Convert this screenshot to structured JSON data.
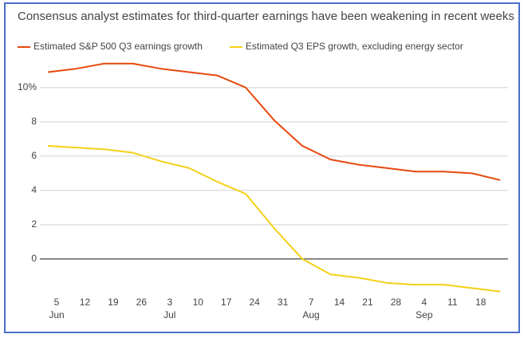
{
  "chart_data": {
    "type": "line",
    "title": "Consensus analyst estimates for third-quarter earnings have been weakening in recent weeks",
    "categories": [
      "5",
      "12",
      "19",
      "26",
      "3",
      "10",
      "17",
      "24",
      "31",
      "7",
      "14",
      "21",
      "28",
      "4",
      "11",
      "18",
      null
    ],
    "month_labels": [
      "Jun",
      null,
      null,
      null,
      "Jul",
      null,
      null,
      null,
      null,
      "Aug",
      null,
      null,
      null,
      "Sep",
      null,
      null,
      null
    ],
    "series": [
      {
        "name": "Estimated S&P 500 Q3 earnings growth",
        "color": "#e8490f",
        "values": [
          10.9,
          11.1,
          11.4,
          11.4,
          11.1,
          10.9,
          10.7,
          10.0,
          8.1,
          6.6,
          5.8,
          5.5,
          5.3,
          5.1,
          5.1,
          5.0,
          4.6
        ]
      },
      {
        "name": "Estimated Q3 EPS growth, excluding energy sector",
        "color": "#f5d018",
        "values": [
          6.6,
          6.5,
          6.4,
          6.2,
          5.7,
          5.3,
          4.5,
          3.8,
          1.8,
          0.0,
          -0.9,
          -1.1,
          -1.4,
          -1.5,
          -1.5,
          -1.7,
          -1.9
        ]
      }
    ],
    "ylim": [
      -2.1,
      11.9
    ],
    "yticks": [
      0,
      2,
      4,
      6,
      8,
      {
        "value": 10,
        "label": "10%"
      }
    ],
    "grid": true,
    "zero_line": true
  }
}
